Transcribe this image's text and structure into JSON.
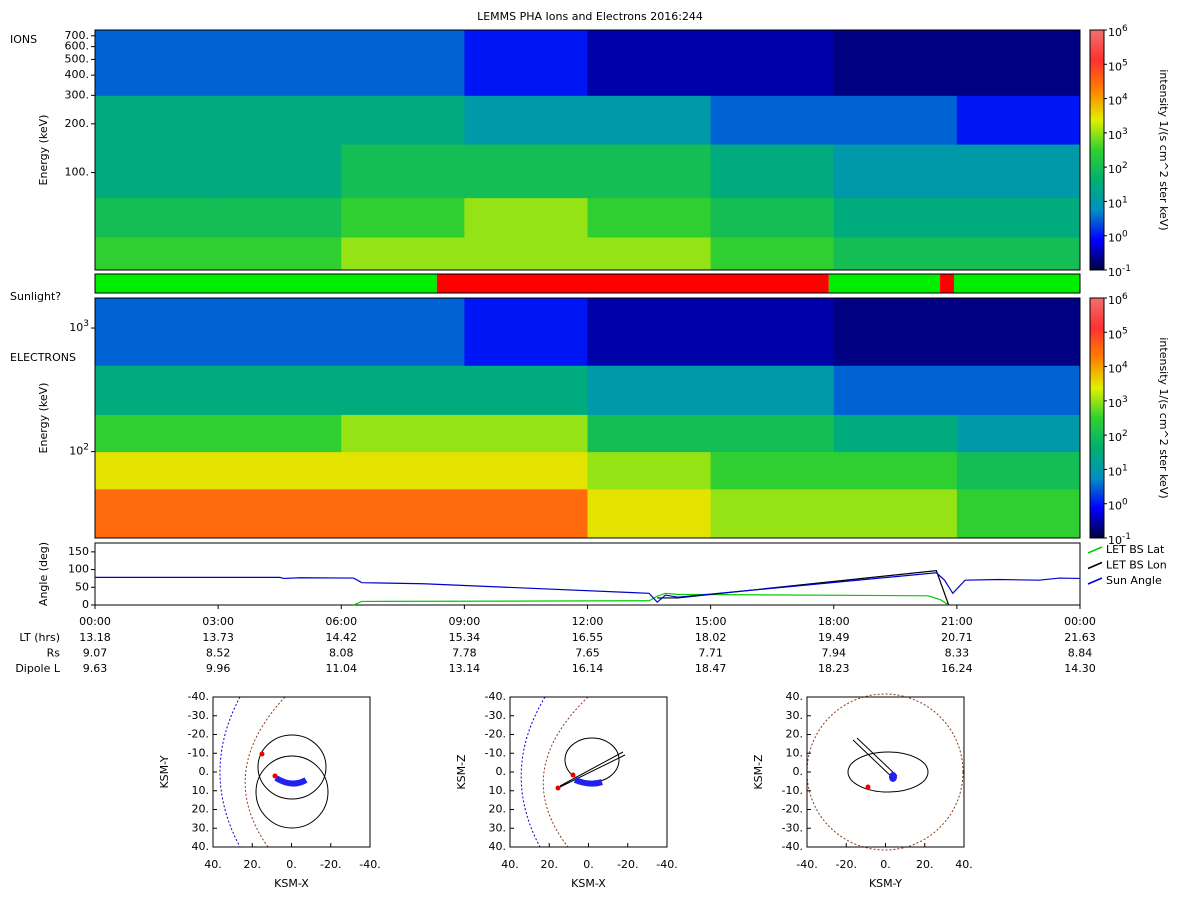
{
  "title": "LEMMS PHA Ions and Electrons  2016:244",
  "chart_data": [
    {
      "type": "heatmap",
      "panel_label": "IONS",
      "ylabel": "Energy (keV)",
      "ylog": true,
      "xlim": [
        0,
        24
      ],
      "ylim": [
        25,
        760
      ],
      "yticks": [
        {
          "value": 100,
          "label": "100."
        },
        {
          "value": 200,
          "label": "200."
        },
        {
          "value": 300,
          "label": "300."
        },
        {
          "value": 400,
          "label": "400."
        },
        {
          "value": 500,
          "label": "500."
        },
        {
          "value": 600,
          "label": "600."
        },
        {
          "value": 700,
          "label": "700."
        }
      ],
      "bins_x": [
        0,
        3,
        6,
        9,
        12,
        15,
        18,
        21,
        24
      ],
      "bins_y": [
        25,
        40,
        70,
        150,
        300,
        760
      ],
      "values": [
        [
          300,
          300,
          1000,
          1000,
          1000,
          300,
          100,
          100
        ],
        [
          100,
          100,
          300,
          1000,
          300,
          100,
          30,
          30
        ],
        [
          30,
          30,
          100,
          100,
          100,
          30,
          10,
          10
        ],
        [
          30,
          30,
          30,
          10,
          10,
          3,
          3,
          1
        ],
        [
          3,
          3,
          3,
          1,
          0.3,
          0.3,
          0.2,
          0.2
        ]
      ],
      "colorbar_label": "intensity 1/(s cm^2 ster keV)",
      "clim": [
        0.1,
        1000000
      ],
      "colormap": [
        "#000040",
        "#0000ff",
        "#0090c0",
        "#00b070",
        "#30d030",
        "#e0f000",
        "#ff8000",
        "#ff3030",
        "#f07070"
      ],
      "cticks": [
        {
          "value": 0.1,
          "label": "10",
          "exponent": "-1"
        },
        {
          "value": 1,
          "label": "10",
          "exponent": "0"
        },
        {
          "value": 10,
          "label": "10",
          "exponent": "1"
        },
        {
          "value": 100,
          "label": "10",
          "exponent": "2"
        },
        {
          "value": 1000,
          "label": "10",
          "exponent": "3"
        },
        {
          "value": 10000,
          "label": "10",
          "exponent": "4"
        },
        {
          "value": 100000,
          "label": "10",
          "exponent": "5"
        },
        {
          "value": 1000000,
          "label": "10",
          "exponent": "6"
        }
      ]
    },
    {
      "type": "heatmap",
      "panel_label": "ELECTRONS",
      "ylabel": "Energy (keV)",
      "ylog": true,
      "xlim": [
        0,
        24
      ],
      "ylim": [
        20,
        1750
      ],
      "yticks": [
        {
          "value": 100,
          "label": "10",
          "exponent": "2"
        },
        {
          "value": 1000,
          "label": "10",
          "exponent": "3"
        }
      ],
      "bins_x": [
        0,
        3,
        6,
        9,
        12,
        15,
        18,
        21,
        24
      ],
      "bins_y": [
        20,
        50,
        100,
        200,
        500,
        1750
      ],
      "values": [
        [
          30000,
          30000,
          30000,
          30000,
          3000,
          1000,
          1000,
          300
        ],
        [
          3000,
          3000,
          3000,
          3000,
          1000,
          300,
          300,
          100
        ],
        [
          300,
          300,
          1000,
          1000,
          100,
          100,
          30,
          10
        ],
        [
          30,
          30,
          30,
          30,
          10,
          10,
          3,
          3
        ],
        [
          3,
          3,
          3,
          1,
          0.3,
          0.3,
          0.2,
          0.2
        ]
      ],
      "colorbar_label": "intensity 1/(s cm^2 ster keV)",
      "clim": [
        0.1,
        1000000
      ],
      "colormap": [
        "#000040",
        "#0000ff",
        "#0090c0",
        "#00b070",
        "#30d030",
        "#e0f000",
        "#ff8000",
        "#ff3030",
        "#f07070"
      ],
      "cticks": [
        {
          "value": 0.1,
          "label": "10",
          "exponent": "-1"
        },
        {
          "value": 1,
          "label": "10",
          "exponent": "0"
        },
        {
          "value": 10,
          "label": "10",
          "exponent": "1"
        },
        {
          "value": 100,
          "label": "10",
          "exponent": "2"
        },
        {
          "value": 1000,
          "label": "10",
          "exponent": "3"
        },
        {
          "value": 10000,
          "label": "10",
          "exponent": "4"
        },
        {
          "value": 100000,
          "label": "10",
          "exponent": "5"
        },
        {
          "value": 1000000,
          "label": "10",
          "exponent": "6"
        }
      ]
    },
    {
      "type": "line",
      "ylabel": "Angle (deg)",
      "xlim": [
        0,
        24
      ],
      "ylim": [
        0,
        175
      ],
      "yticks": [
        0,
        50,
        100,
        150
      ],
      "xticks": [
        {
          "value": 0,
          "label": "00:00"
        },
        {
          "value": 3,
          "label": "03:00"
        },
        {
          "value": 6,
          "label": "06:00"
        },
        {
          "value": 9,
          "label": "09:00"
        },
        {
          "value": 12,
          "label": "12:00"
        },
        {
          "value": 15,
          "label": "15:00"
        },
        {
          "value": 18,
          "label": "18:00"
        },
        {
          "value": 21,
          "label": "21:00"
        },
        {
          "value": 24,
          "label": "00:00"
        }
      ],
      "series": [
        {
          "name": "LET BS Lat",
          "color": "#00cc00",
          "x": [
            6.3,
            6.5,
            13.5,
            13.7,
            13.9,
            14.2,
            20.3,
            20.6,
            20.8
          ],
          "values": [
            0,
            10,
            12,
            25,
            33,
            30,
            26,
            15,
            0
          ]
        },
        {
          "name": "LET BS Lon",
          "color": "#000000",
          "x": [
            13.7,
            14.2,
            20.5,
            20.8
          ],
          "values": [
            20,
            20,
            97,
            0
          ]
        },
        {
          "name": "Sun Angle",
          "color": "#0000cc",
          "x": [
            0,
            4.5,
            4.6,
            5,
            6.3,
            6.5,
            8,
            13.5,
            13.7,
            13.9,
            14.2,
            20.5,
            20.7,
            20.9,
            21.2,
            22,
            23,
            23.5,
            24
          ],
          "values": [
            78,
            78,
            75,
            77,
            76,
            63,
            60,
            33,
            8,
            28,
            22,
            91,
            70,
            33,
            70,
            72,
            70,
            76,
            75
          ]
        }
      ]
    },
    {
      "type": "orbit",
      "xlabel": "KSM-X",
      "ylabel": "KSM-Y",
      "xlim": [
        40,
        -40
      ],
      "ylim": [
        40,
        -40
      ],
      "xticks": [
        {
          "value": 40,
          "label": "40."
        },
        {
          "value": 20,
          "label": "20."
        },
        {
          "value": 0,
          "label": "0."
        },
        {
          "value": -20,
          "label": "-20."
        },
        {
          "value": -40,
          "label": "-40."
        }
      ],
      "yticks": [
        {
          "value": -40,
          "label": "-40."
        },
        {
          "value": -30,
          "label": "-30."
        },
        {
          "value": -20,
          "label": "-20."
        },
        {
          "value": -10,
          "label": "-10."
        },
        {
          "value": 0,
          "label": "0."
        },
        {
          "value": 10,
          "label": "10."
        },
        {
          "value": 20,
          "label": "20."
        },
        {
          "value": 30,
          "label": "30."
        },
        {
          "value": 40,
          "label": "40."
        }
      ]
    },
    {
      "type": "orbit",
      "xlabel": "KSM-X",
      "ylabel": "KSM-Z",
      "xlim": [
        40,
        -40
      ],
      "ylim": [
        40,
        -40
      ],
      "xticks": [
        {
          "value": 40,
          "label": "40."
        },
        {
          "value": 20,
          "label": "20."
        },
        {
          "value": 0,
          "label": "0."
        },
        {
          "value": -20,
          "label": "-20."
        },
        {
          "value": -40,
          "label": "-40."
        }
      ],
      "yticks": [
        {
          "value": -40,
          "label": "-40."
        },
        {
          "value": -30,
          "label": "-30."
        },
        {
          "value": -20,
          "label": "-20."
        },
        {
          "value": -10,
          "label": "-10."
        },
        {
          "value": 0,
          "label": "0."
        },
        {
          "value": 10,
          "label": "10."
        },
        {
          "value": 20,
          "label": "20."
        },
        {
          "value": 30,
          "label": "30."
        },
        {
          "value": 40,
          "label": "40."
        }
      ]
    },
    {
      "type": "orbit",
      "xlabel": "KSM-Y",
      "ylabel": "KSM-Z",
      "xlim": [
        -40,
        40
      ],
      "ylim": [
        -40,
        40
      ],
      "xticks": [
        {
          "value": -40,
          "label": "-40."
        },
        {
          "value": -20,
          "label": "-20."
        },
        {
          "value": 0,
          "label": "0."
        },
        {
          "value": 20,
          "label": "20."
        },
        {
          "value": 40,
          "label": "40."
        }
      ],
      "yticks": [
        {
          "value": 40,
          "label": "40."
        },
        {
          "value": 30,
          "label": "30."
        },
        {
          "value": 20,
          "label": "20."
        },
        {
          "value": 10,
          "label": "10."
        },
        {
          "value": 0,
          "label": "0."
        },
        {
          "value": -10,
          "label": "-10."
        },
        {
          "value": -20,
          "label": "-20."
        },
        {
          "value": -30,
          "label": "-30."
        },
        {
          "value": -40,
          "label": "-40."
        }
      ]
    }
  ],
  "sunlight": {
    "label": "Sunlight?",
    "segments": [
      {
        "start": 0,
        "end": 8.33,
        "color": "#00ee00"
      },
      {
        "start": 8.33,
        "end": 17.88,
        "color": "#ff0000"
      },
      {
        "start": 17.88,
        "end": 20.59,
        "color": "#00ee00"
      },
      {
        "start": 20.59,
        "end": 20.93,
        "color": "#ff0000"
      },
      {
        "start": 20.93,
        "end": 24,
        "color": "#00ee00"
      }
    ]
  },
  "ephemeris": {
    "rows": [
      {
        "label": "LT (hrs)",
        "values": [
          "13.18",
          "13.73",
          "14.42",
          "15.34",
          "16.55",
          "18.02",
          "19.49",
          "20.71",
          "21.63"
        ]
      },
      {
        "label": "Rs",
        "values": [
          "9.07",
          "8.52",
          "8.08",
          "7.78",
          "7.65",
          "7.71",
          "7.94",
          "8.33",
          "8.84"
        ]
      },
      {
        "label": "Dipole L",
        "values": [
          "9.63",
          "9.96",
          "11.04",
          "13.14",
          "16.14",
          "18.47",
          "18.23",
          "16.24",
          "14.30"
        ]
      }
    ]
  }
}
